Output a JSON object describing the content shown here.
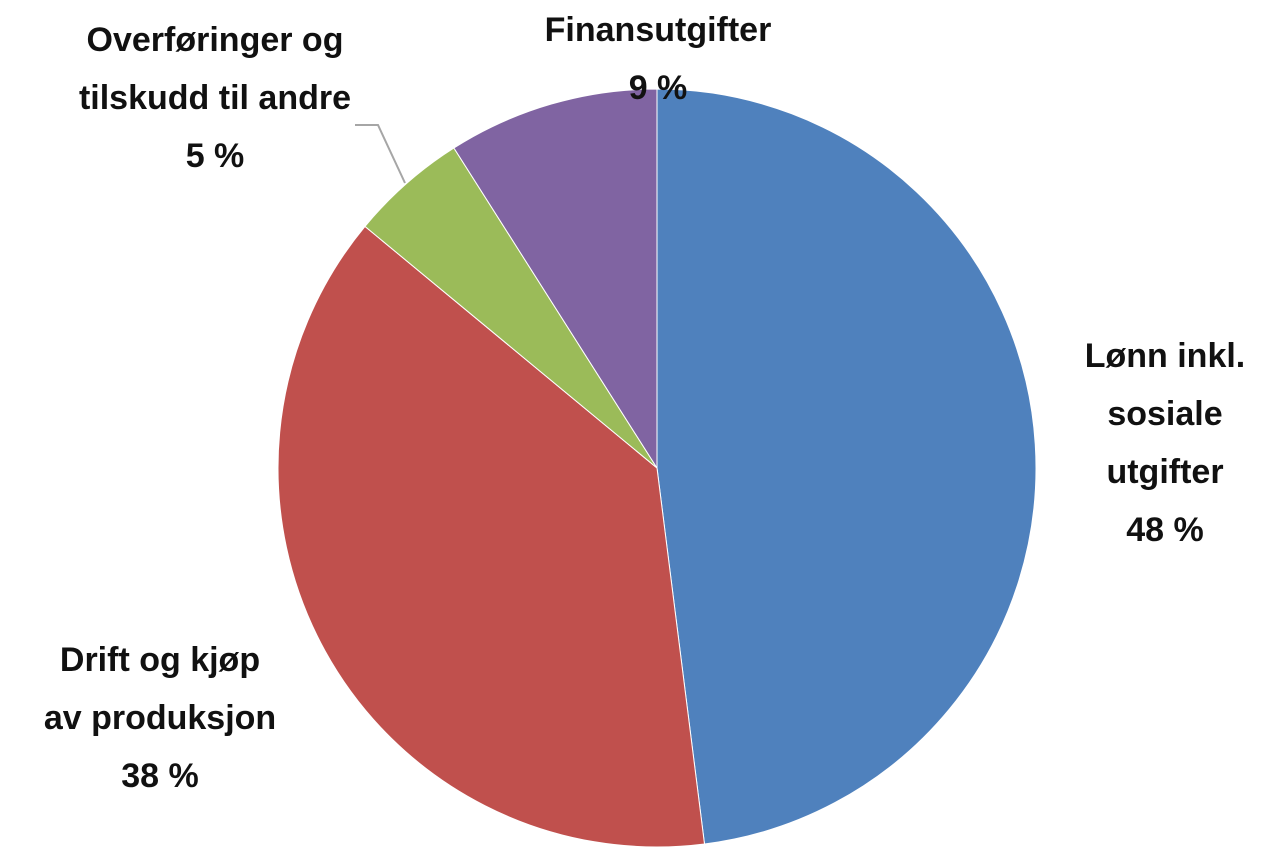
{
  "chart_data": {
    "type": "pie",
    "categories": [
      "Lønn inkl. sosiale utgifter",
      "Drift og kjøp av produksjon",
      "Overføringer og tilskudd til andre",
      "Finansutgifter"
    ],
    "values": [
      48,
      38,
      5,
      9
    ],
    "value_labels": [
      "48 %",
      "38 %",
      "5 %",
      "9 %"
    ],
    "colors": [
      "#4f81bd",
      "#c0504d",
      "#9bbb59",
      "#8064a2"
    ]
  }
}
